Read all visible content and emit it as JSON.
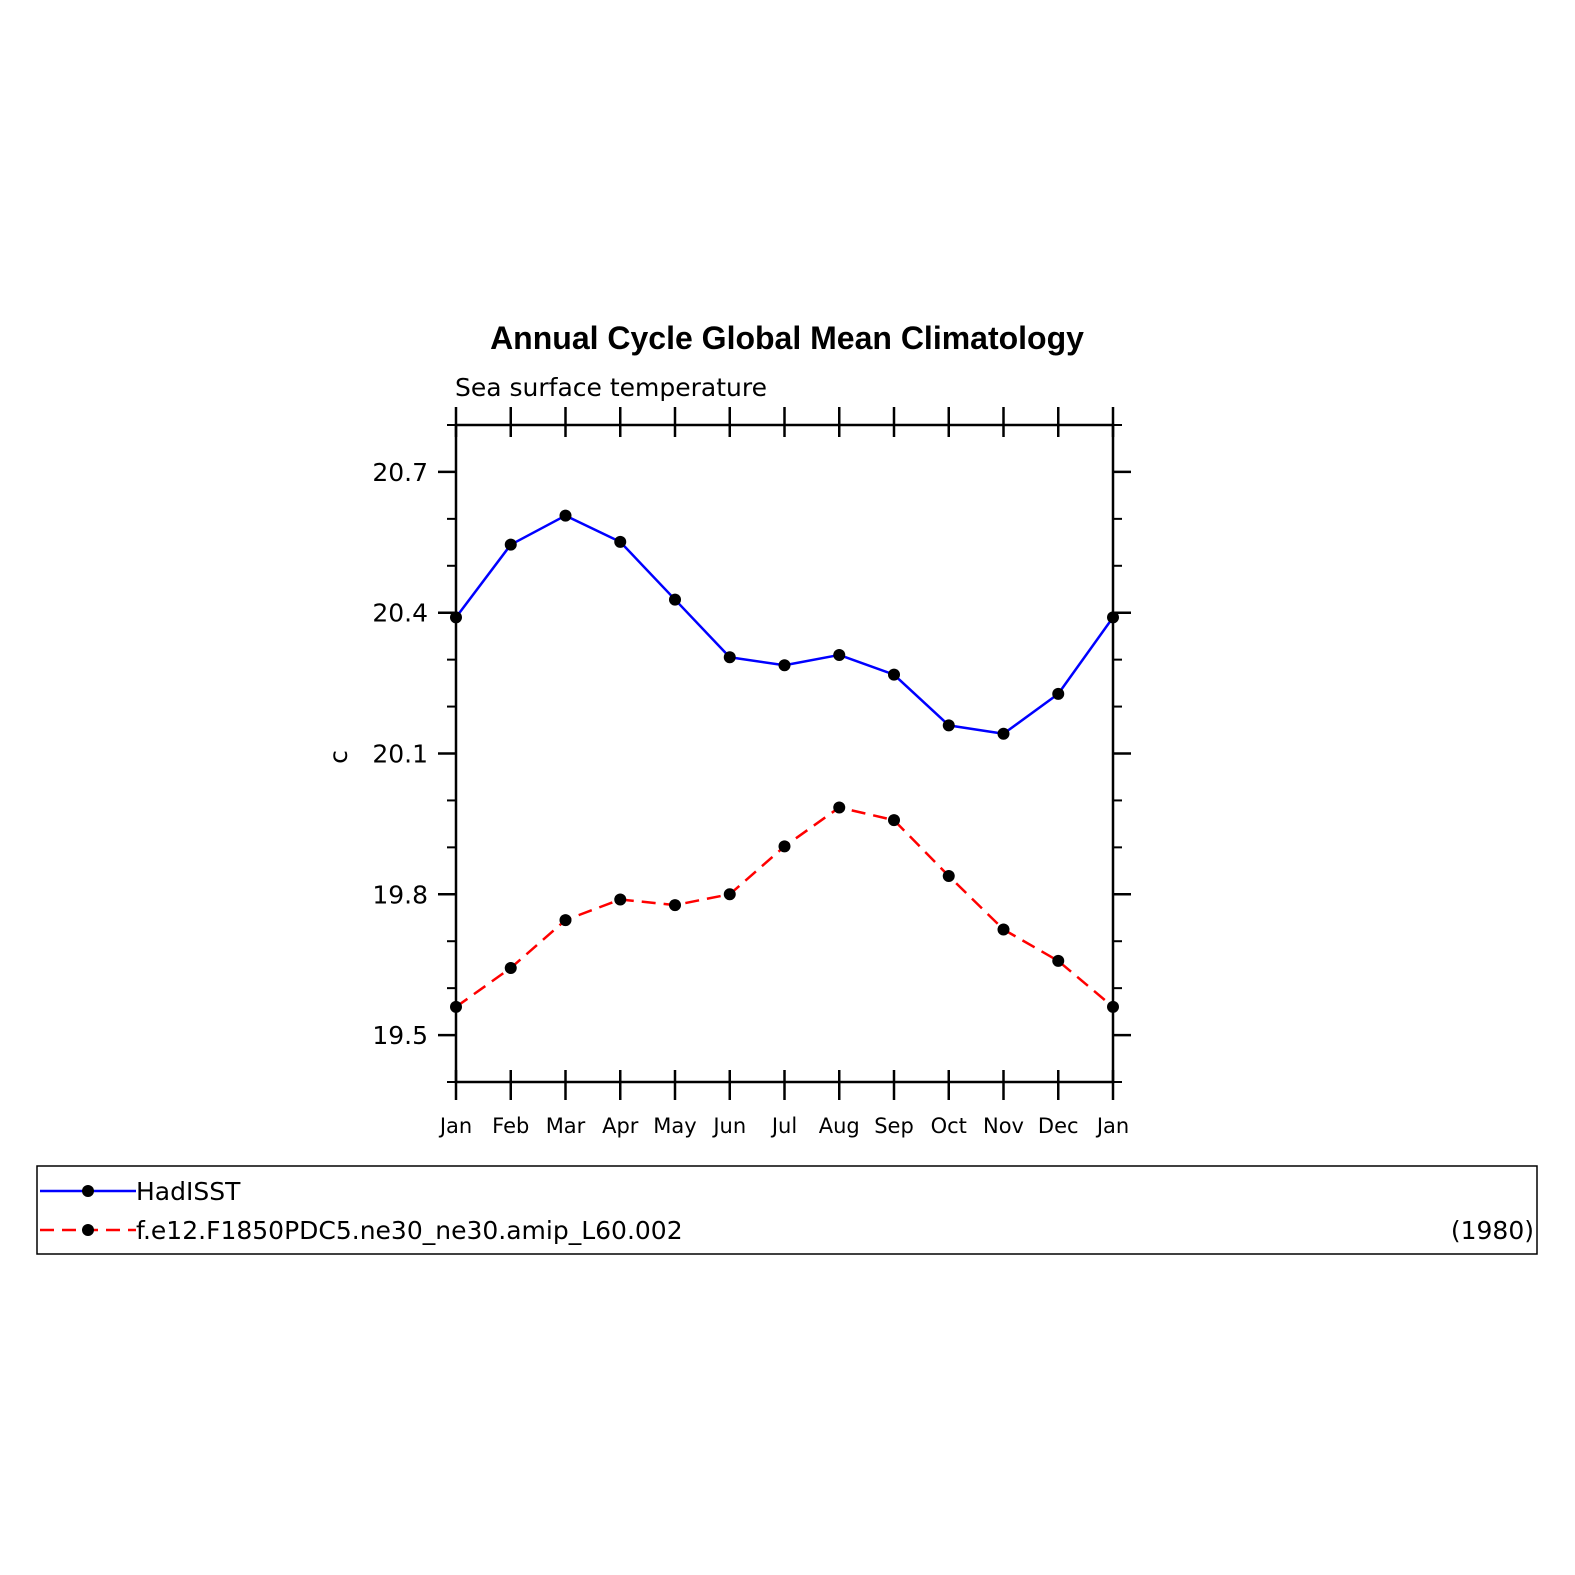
{
  "chart_data": {
    "type": "line",
    "title": "Annual Cycle Global Mean Climatology",
    "subtitle": "Sea surface temperature",
    "ylabel": "c",
    "xlabel": "",
    "categories": [
      "Jan",
      "Feb",
      "Mar",
      "Apr",
      "May",
      "Jun",
      "Jul",
      "Aug",
      "Sep",
      "Oct",
      "Nov",
      "Dec",
      "Jan"
    ],
    "ylim": [
      19.4,
      20.8
    ],
    "yticks": [
      19.5,
      19.8,
      20.1,
      20.4,
      20.7
    ],
    "ytick_labels": [
      "19.5",
      "19.8",
      "20.1",
      "20.4",
      "20.7"
    ],
    "grid": false,
    "legend_position": "bottom",
    "series": [
      {
        "name": "HadISST",
        "color": "#0000ff",
        "dash": "solid",
        "values": [
          20.39,
          20.545,
          20.607,
          20.551,
          20.428,
          20.305,
          20.288,
          20.31,
          20.268,
          20.16,
          20.142,
          20.227,
          20.39
        ]
      },
      {
        "name": "f.e12.F1850PDC5.ne30_ne30.amip_L60.002",
        "color": "#ff0000",
        "dash": "dashed",
        "values": [
          19.56,
          19.643,
          19.745,
          19.789,
          19.777,
          19.8,
          19.902,
          19.985,
          19.958,
          19.839,
          19.725,
          19.658,
          19.56
        ]
      }
    ],
    "legend_note": "(1980)"
  }
}
